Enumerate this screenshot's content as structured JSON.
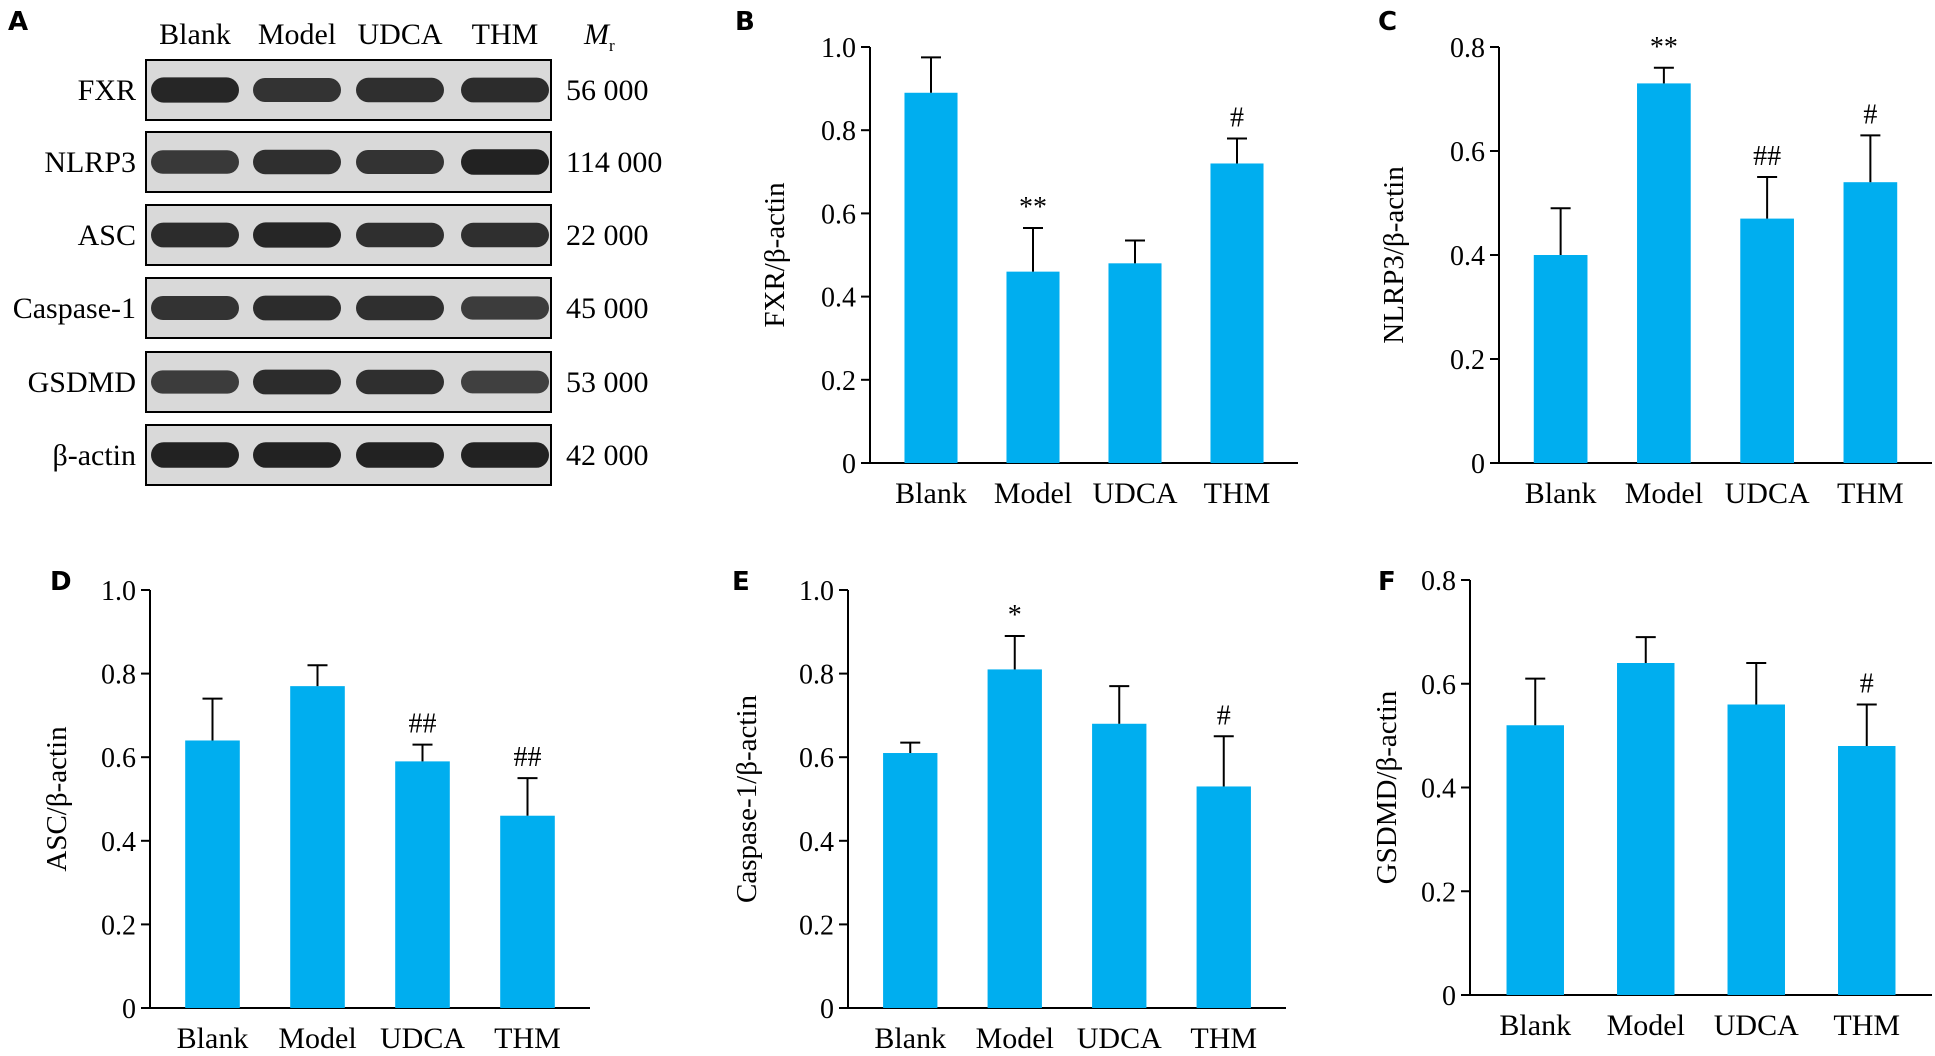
{
  "figure": {
    "bar_color": "#00aeef",
    "axis_color": "#000000",
    "blot_band_color": "#1e1e1e",
    "blot_background": "#d9d9d9"
  },
  "western_blot": {
    "panel_letter": "A",
    "lanes": [
      "Blank",
      "Model",
      "UDCA",
      "THM"
    ],
    "mr_header": {
      "symbol": "M",
      "subscript": "r"
    },
    "rows": [
      {
        "protein": "FXR",
        "mr": "56 000",
        "intensity": [
          0.9,
          0.75,
          0.8,
          0.85
        ]
      },
      {
        "protein": "NLRP3",
        "mr": "114 000",
        "intensity": [
          0.7,
          0.8,
          0.75,
          0.95
        ]
      },
      {
        "protein": "ASC",
        "mr": "22 000",
        "intensity": [
          0.85,
          0.9,
          0.8,
          0.8
        ]
      },
      {
        "protein": "Caspase-1",
        "mr": "45 000",
        "intensity": [
          0.75,
          0.85,
          0.8,
          0.65
        ]
      },
      {
        "protein": "GSDMD",
        "mr": "53 000",
        "intensity": [
          0.65,
          0.85,
          0.8,
          0.6
        ]
      },
      {
        "protein": "β-actin",
        "mr": "42 000",
        "intensity": [
          0.95,
          0.95,
          0.95,
          0.95
        ]
      }
    ]
  },
  "chart_data": [
    {
      "panel": "B",
      "type": "bar",
      "categories": [
        "Blank",
        "Model",
        "UDCA",
        "THM"
      ],
      "values": [
        0.89,
        0.46,
        0.48,
        0.72
      ],
      "errors": [
        0.085,
        0.105,
        0.055,
        0.06
      ],
      "annotations": [
        "",
        "**",
        "",
        "#"
      ],
      "ylabel": "FXR/β-actin",
      "ylim": [
        0,
        1.0
      ],
      "yticks": [
        "0",
        "0.2",
        "0.4",
        "0.6",
        "0.8",
        "1.0"
      ]
    },
    {
      "panel": "C",
      "type": "bar",
      "categories": [
        "Blank",
        "Model",
        "UDCA",
        "THM"
      ],
      "values": [
        0.4,
        0.73,
        0.47,
        0.54
      ],
      "errors": [
        0.09,
        0.03,
        0.08,
        0.09
      ],
      "annotations": [
        "",
        "**",
        "##",
        "#"
      ],
      "ylabel": "NLRP3/β-actin",
      "ylim": [
        0,
        0.8
      ],
      "yticks": [
        "0",
        "0.2",
        "0.4",
        "0.6",
        "0.8"
      ]
    },
    {
      "panel": "D",
      "type": "bar",
      "categories": [
        "Blank",
        "Model",
        "UDCA",
        "THM"
      ],
      "values": [
        0.64,
        0.77,
        0.59,
        0.46
      ],
      "errors": [
        0.1,
        0.05,
        0.04,
        0.09
      ],
      "annotations": [
        "",
        "",
        "##",
        "##"
      ],
      "ylabel": "ASC/β-actin",
      "ylim": [
        0,
        1.0
      ],
      "yticks": [
        "0",
        "0.2",
        "0.4",
        "0.6",
        "0.8",
        "1.0"
      ]
    },
    {
      "panel": "E",
      "type": "bar",
      "categories": [
        "Blank",
        "Model",
        "UDCA",
        "THM"
      ],
      "values": [
        0.61,
        0.81,
        0.68,
        0.53
      ],
      "errors": [
        0.025,
        0.08,
        0.09,
        0.12
      ],
      "annotations": [
        "",
        "*",
        "",
        "#"
      ],
      "ylabel": "Caspase-1/β-actin",
      "ylim": [
        0,
        1.0
      ],
      "yticks": [
        "0",
        "0.2",
        "0.4",
        "0.6",
        "0.8",
        "1.0"
      ]
    },
    {
      "panel": "F",
      "type": "bar",
      "categories": [
        "Blank",
        "Model",
        "UDCA",
        "THM"
      ],
      "values": [
        0.52,
        0.64,
        0.56,
        0.48
      ],
      "errors": [
        0.09,
        0.05,
        0.08,
        0.08
      ],
      "annotations": [
        "",
        "",
        "",
        "#"
      ],
      "ylabel": "GSDMD/β-actin",
      "ylim": [
        0,
        0.8
      ],
      "yticks": [
        "0",
        "0.2",
        "0.4",
        "0.6",
        "0.8"
      ]
    }
  ]
}
